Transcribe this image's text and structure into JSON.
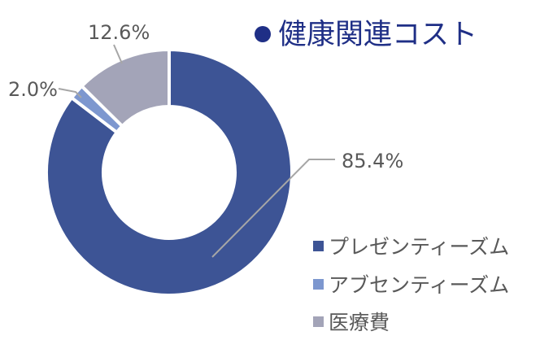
{
  "chart_data": {
    "type": "pie",
    "title": "健康関連コスト",
    "title_marker": "●",
    "series": [
      {
        "name": "プレゼンティーズム",
        "value": 85.4,
        "label": "85.4%",
        "color": "#3d5495"
      },
      {
        "name": "アブセンティーズム",
        "value": 2.0,
        "label": "2.0%",
        "color": "#7d97cf"
      },
      {
        "name": "医療費",
        "value": 12.6,
        "label": "12.6%",
        "color": "#a3a4b8"
      }
    ],
    "donut": true,
    "legend_position": "bottom-right"
  }
}
